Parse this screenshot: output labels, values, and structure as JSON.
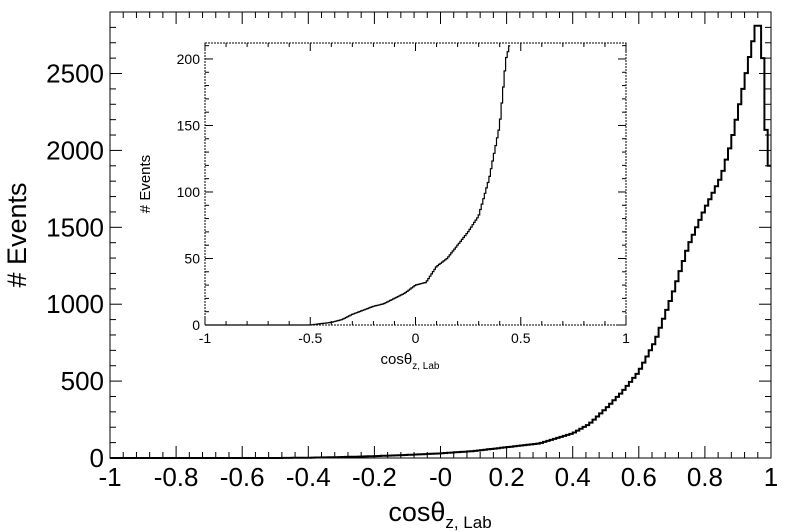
{
  "chart_data": [
    {
      "type": "histogram",
      "panel": "main",
      "xlabel_main": "cosθ",
      "xlabel_sub": "z, Lab",
      "ylabel": "# Events",
      "xlim": [
        -1,
        1
      ],
      "ylim": [
        0,
        2900
      ],
      "xticks": [
        -1,
        -0.8,
        -0.6,
        -0.4,
        -0.2,
        0,
        0.2,
        0.4,
        0.6,
        0.8,
        1
      ],
      "xtick_labels": [
        "-1",
        "-0.8",
        "-0.6",
        "-0.4",
        "-0.2",
        "-0",
        "0.2",
        "0.4",
        "0.6",
        "0.8",
        "1"
      ],
      "yticks": [
        0,
        500,
        1000,
        1500,
        2000,
        2500
      ],
      "ytick_labels": [
        "0",
        "500",
        "1000",
        "1500",
        "2000",
        "2500"
      ],
      "curve_points": [
        [
          -1,
          0
        ],
        [
          -0.5,
          0
        ],
        [
          -0.4,
          2
        ],
        [
          -0.3,
          6
        ],
        [
          -0.2,
          12
        ],
        [
          -0.1,
          20
        ],
        [
          0,
          30
        ],
        [
          0.1,
          45
        ],
        [
          0.2,
          70
        ],
        [
          0.3,
          95
        ],
        [
          0.4,
          160
        ],
        [
          0.45,
          220
        ],
        [
          0.5,
          320
        ],
        [
          0.55,
          430
        ],
        [
          0.6,
          560
        ],
        [
          0.65,
          760
        ],
        [
          0.7,
          1050
        ],
        [
          0.75,
          1380
        ],
        [
          0.8,
          1620
        ],
        [
          0.85,
          1830
        ],
        [
          0.88,
          2050
        ],
        [
          0.9,
          2250
        ],
        [
          0.92,
          2450
        ],
        [
          0.94,
          2660
        ],
        [
          0.955,
          2810
        ],
        [
          0.965,
          2810
        ],
        [
          0.975,
          2600
        ],
        [
          0.99,
          1900
        ],
        [
          1.0,
          1900
        ]
      ]
    },
    {
      "type": "histogram",
      "panel": "inset",
      "xlabel_main": "cosθ",
      "xlabel_sub": "z, Lab",
      "ylabel": "# Events",
      "xlim": [
        -1,
        1
      ],
      "ylim": [
        0,
        212
      ],
      "xticks": [
        -1,
        -0.5,
        0,
        0.5,
        1
      ],
      "xtick_labels": [
        "-1",
        "-0.5",
        "0",
        "0.5",
        "1"
      ],
      "yticks": [
        0,
        50,
        100,
        150,
        200
      ],
      "ytick_labels": [
        "0",
        "50",
        "100",
        "150",
        "200"
      ],
      "curve_points": [
        [
          -1,
          0
        ],
        [
          -0.5,
          0
        ],
        [
          -0.45,
          1
        ],
        [
          -0.4,
          2
        ],
        [
          -0.35,
          4
        ],
        [
          -0.3,
          8
        ],
        [
          -0.25,
          11
        ],
        [
          -0.2,
          14
        ],
        [
          -0.15,
          16
        ],
        [
          -0.1,
          20
        ],
        [
          -0.05,
          24
        ],
        [
          0,
          30
        ],
        [
          0.05,
          32
        ],
        [
          0.1,
          44
        ],
        [
          0.15,
          50
        ],
        [
          0.2,
          60
        ],
        [
          0.25,
          70
        ],
        [
          0.3,
          82
        ],
        [
          0.35,
          110
        ],
        [
          0.4,
          150
        ],
        [
          0.43,
          200
        ],
        [
          0.45,
          212
        ]
      ]
    }
  ]
}
